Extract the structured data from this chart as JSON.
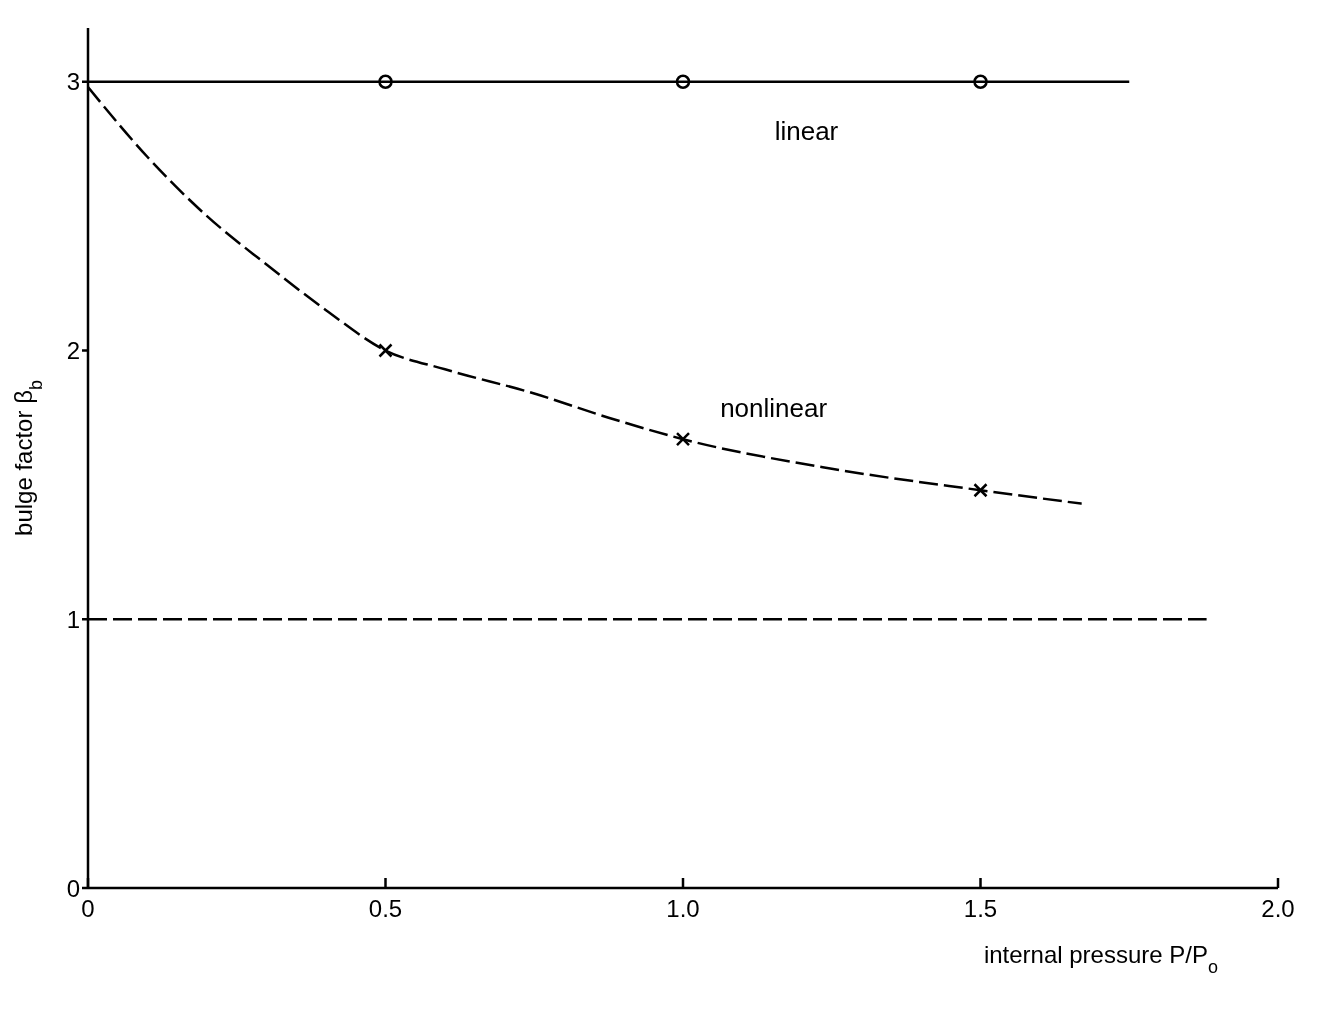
{
  "chart_data": {
    "type": "line",
    "xlabel": "internal pressure P/P$_{o}$",
    "ylabel": "bulge factor β$_{b}$",
    "xlim": [
      0,
      2.0
    ],
    "xticks": [
      0,
      0.5,
      {
        "value": 1,
        "label": "1.0"
      },
      {
        "value": 1.5,
        "label": "1.5"
      },
      {
        "value": 2,
        "label": "2.0"
      }
    ],
    "ylim": [
      0,
      3.2
    ],
    "yticks": [
      0,
      1,
      2,
      3
    ],
    "grid": false,
    "series": [
      {
        "name": "linear",
        "color": "#000000",
        "line_style": "solid",
        "marker": "none",
        "x": [
          0,
          1.75
        ],
        "values": [
          3,
          3
        ]
      },
      {
        "type": "scatter",
        "color": "#000000",
        "marker": "circle",
        "x": [
          0.5,
          1.0,
          1.5
        ],
        "values": [
          3,
          3,
          3
        ]
      },
      {
        "name": "nonlinear",
        "color": "#000000",
        "line_style": "dashed",
        "marker": "none",
        "x": [
          0,
          0.1,
          0.2,
          0.3,
          0.4,
          0.5,
          0.6,
          0.75,
          0.875,
          1.0,
          1.25,
          1.5,
          1.67
        ],
        "values": [
          2.98,
          2.72,
          2.5,
          2.32,
          2.15,
          2.0,
          1.93,
          1.84,
          1.75,
          1.67,
          1.56,
          1.48,
          1.43
        ]
      },
      {
        "type": "scatter",
        "color": "#000000",
        "marker": "cross",
        "x": [
          0.5,
          1.0,
          1.5
        ],
        "values": [
          2.0,
          1.67,
          1.48
        ]
      },
      {
        "color": "#000000",
        "line_style": "dashed",
        "marker": "none",
        "x": [
          0,
          1.88
        ],
        "values": [
          1,
          1
        ]
      }
    ]
  }
}
